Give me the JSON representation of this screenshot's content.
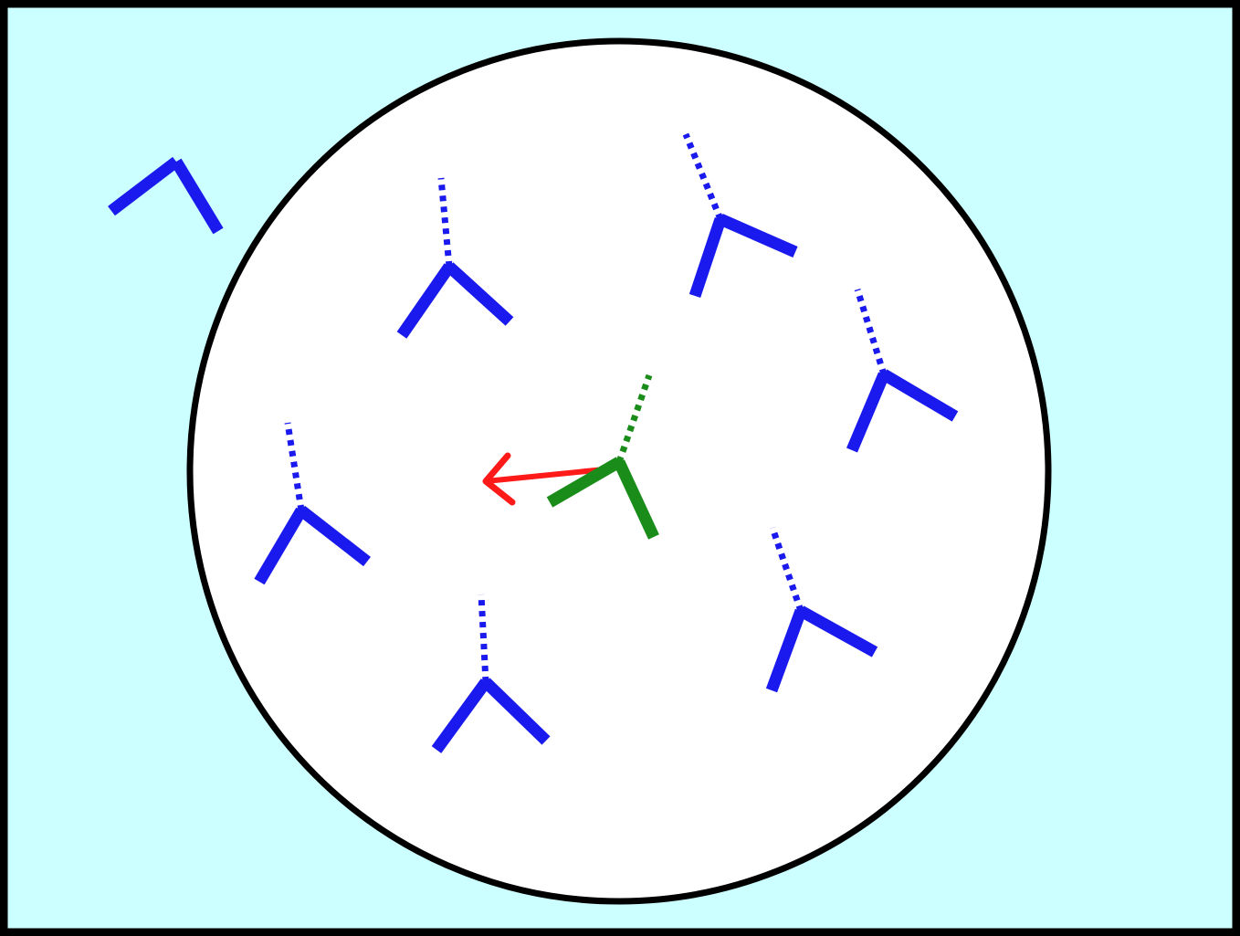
{
  "diagram": {
    "colors": {
      "background": "#ccffff",
      "border": "#000000",
      "circle_fill": "#ffffff",
      "circle_stroke": "#000000",
      "molecule": "#1a1aee",
      "highlight_molecule": "#1a8c1a",
      "arrow": "#ff1a1a"
    },
    "molecules": [
      {
        "id": "outside",
        "location": "outside-circle",
        "color": "blue",
        "has_dotted_arm": false
      },
      {
        "id": "m1",
        "location": "inside-circle",
        "color": "blue",
        "has_dotted_arm": true
      },
      {
        "id": "m2",
        "location": "inside-circle",
        "color": "blue",
        "has_dotted_arm": true
      },
      {
        "id": "m3",
        "location": "inside-circle",
        "color": "blue",
        "has_dotted_arm": true
      },
      {
        "id": "m4",
        "location": "inside-circle",
        "color": "blue",
        "has_dotted_arm": true
      },
      {
        "id": "m5",
        "location": "inside-circle",
        "color": "blue",
        "has_dotted_arm": true
      },
      {
        "id": "m6",
        "location": "inside-circle",
        "color": "blue",
        "has_dotted_arm": true
      },
      {
        "id": "center",
        "location": "inside-circle",
        "color": "green",
        "has_dotted_arm": true,
        "has_arrow": true
      }
    ]
  }
}
